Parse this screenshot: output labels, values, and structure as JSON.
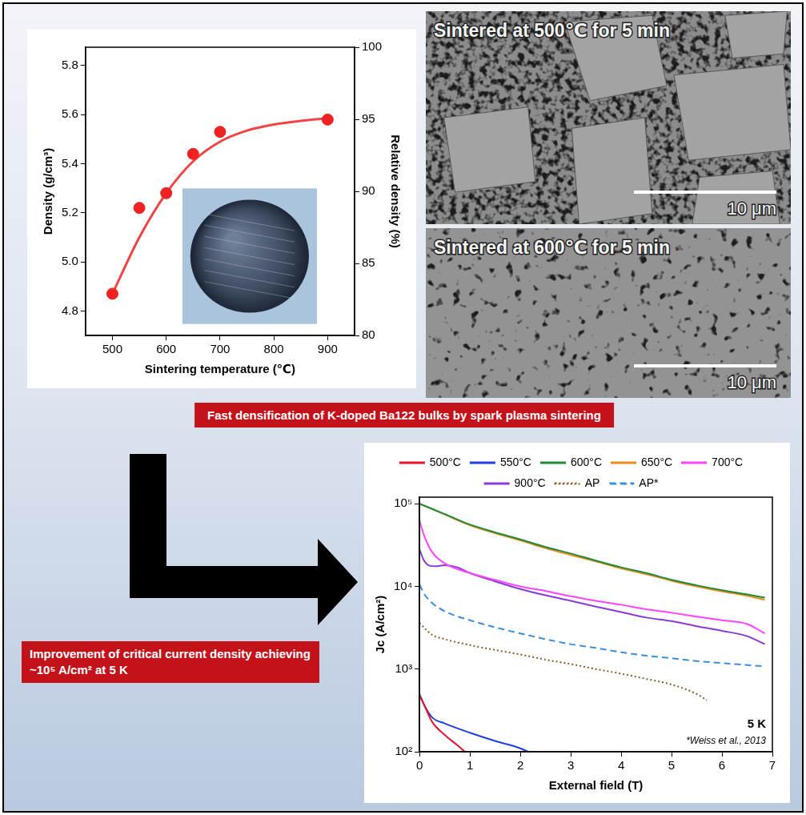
{
  "chart_data": [
    {
      "type": "scatter",
      "x_label": "Sintering temperature (℃)",
      "y_label": "Density (g/cm³)",
      "y2_label": "Relative density (%)",
      "xlim": [
        450,
        950
      ],
      "xticks": [
        500,
        600,
        700,
        800,
        900
      ],
      "ylim": [
        4.7,
        5.875
      ],
      "yticks": [
        4.8,
        {
          "value": 5,
          "label": "5.0"
        },
        5.2,
        5.4,
        5.6,
        5.8
      ],
      "y2lim": [
        80,
        100
      ],
      "y2ticks": [
        80,
        85,
        90,
        95,
        100
      ],
      "grid": false,
      "series": [
        {
          "type": "scatter",
          "marker": "circle",
          "color": "#ee2222",
          "x": [
            500,
            550,
            600,
            650,
            700,
            900
          ],
          "values": [
            4.87,
            5.22,
            5.28,
            5.44,
            5.53,
            5.58
          ]
        },
        {
          "type": "line",
          "line_style": "solid",
          "color": "#f04545",
          "x": [
            500,
            550,
            600,
            650,
            700,
            750,
            800,
            850,
            900
          ],
          "values": [
            4.87,
            5.1,
            5.28,
            5.41,
            5.49,
            5.535,
            5.56,
            5.575,
            5.585
          ]
        }
      ]
    },
    {
      "type": "line",
      "log": "y",
      "x_label": "External field (T)",
      "y_label": "Jc (A/cm²)",
      "annotations": [
        "5 K",
        "*Weiss et al., 2013"
      ],
      "legend": "top",
      "grid": false,
      "xlim": [
        0,
        7
      ],
      "xticks": [
        0,
        1,
        2,
        3,
        4,
        5,
        6,
        7
      ],
      "ylim": [
        100,
        120000
      ],
      "yticks": [
        {
          "value": 100,
          "label": "10²"
        },
        {
          "value": 1000,
          "label": "10³"
        },
        {
          "value": 10000,
          "label": "10⁴"
        },
        {
          "value": 100000,
          "label": "10⁵"
        }
      ],
      "series": [
        {
          "name": "500°C",
          "color": "#e8102a",
          "line_style": "solid",
          "x": [
            0,
            0.1,
            0.25,
            0.5,
            0.75,
            0.9
          ],
          "values": [
            480,
            360,
            230,
            160,
            120,
            100
          ]
        },
        {
          "name": "550°C",
          "color": "#1f3fe0",
          "line_style": "solid",
          "x": [
            0,
            0.1,
            0.25,
            0.5,
            1,
            1.5,
            2,
            2.15
          ],
          "values": [
            500,
            360,
            260,
            220,
            170,
            135,
            110,
            100
          ]
        },
        {
          "name": "600°C",
          "color": "#1e8a3a",
          "line_style": "solid",
          "x": [
            0,
            0.5,
            1,
            1.5,
            2,
            2.5,
            3,
            3.5,
            4,
            4.5,
            5,
            5.5,
            6,
            6.5,
            6.85
          ],
          "values": [
            100000,
            75000,
            56000,
            45000,
            37000,
            30000,
            25000,
            20500,
            17000,
            14500,
            12000,
            10300,
            9000,
            8000,
            7300
          ]
        },
        {
          "name": "650°C",
          "color": "#f08a1a",
          "line_style": "solid",
          "x": [
            0,
            0.5,
            1,
            1.5,
            2,
            2.5,
            3,
            3.5,
            4,
            4.5,
            5,
            5.5,
            6,
            6.5,
            6.85
          ],
          "values": [
            100000,
            74000,
            55000,
            44000,
            36000,
            29000,
            24000,
            20000,
            16500,
            14000,
            11700,
            10000,
            8700,
            7700,
            6900
          ]
        },
        {
          "name": "700°C",
          "color": "#ff44ff",
          "line_style": "solid",
          "x": [
            0,
            0.1,
            0.25,
            0.5,
            1,
            1.5,
            2,
            2.5,
            3,
            3.5,
            4,
            4.5,
            5,
            5.5,
            6,
            6.5,
            6.85
          ],
          "values": [
            62000,
            40000,
            26000,
            19000,
            14500,
            12000,
            10000,
            8800,
            7600,
            6700,
            6000,
            5300,
            4800,
            4300,
            3900,
            3500,
            2700
          ]
        },
        {
          "name": "900°C",
          "color": "#8a3ad8",
          "line_style": "solid",
          "x": [
            0,
            0.1,
            0.3,
            0.5,
            0.75,
            1,
            1.5,
            2,
            2.5,
            3,
            3.5,
            4,
            4.5,
            5,
            5.5,
            6,
            6.5,
            6.85
          ],
          "values": [
            28000,
            20000,
            17500,
            18000,
            17000,
            14500,
            11500,
            9300,
            7800,
            6700,
            5700,
            4900,
            4200,
            3800,
            3300,
            2900,
            2500,
            2000
          ]
        },
        {
          "name": "AP",
          "color": "#8b5a2b",
          "line_style": "dotted",
          "x": [
            0,
            0.25,
            0.5,
            1,
            1.5,
            2,
            2.5,
            3,
            3.5,
            4,
            4.5,
            5,
            5.5,
            5.7
          ],
          "values": [
            3600,
            2600,
            2300,
            1950,
            1700,
            1500,
            1300,
            1150,
            1000,
            880,
            760,
            650,
            500,
            420
          ]
        },
        {
          "name": "AP*",
          "color": "#3a8ee0",
          "line_style": "dashed",
          "x": [
            0,
            0.1,
            0.25,
            0.5,
            1,
            1.5,
            2,
            2.5,
            3,
            3.5,
            4,
            4.5,
            5,
            5.5,
            6,
            6.5,
            6.85
          ],
          "values": [
            10500,
            8000,
            6300,
            5000,
            3900,
            3200,
            2700,
            2300,
            2000,
            1800,
            1600,
            1450,
            1350,
            1250,
            1180,
            1120,
            1080
          ]
        }
      ]
    }
  ],
  "images": [
    {
      "label": "Sintered at 500℃ for 5 min",
      "scale_bar": "10 μm"
    },
    {
      "label": "Sintered at 600℃ for 5 min",
      "scale_bar": "10 μm"
    }
  ],
  "banners": [
    "Fast densification of K-doped Ba122 bulks by spark plasma sintering",
    "Improvement of critical current density achieving ~10⁵ A/cm² at 5 K"
  ]
}
